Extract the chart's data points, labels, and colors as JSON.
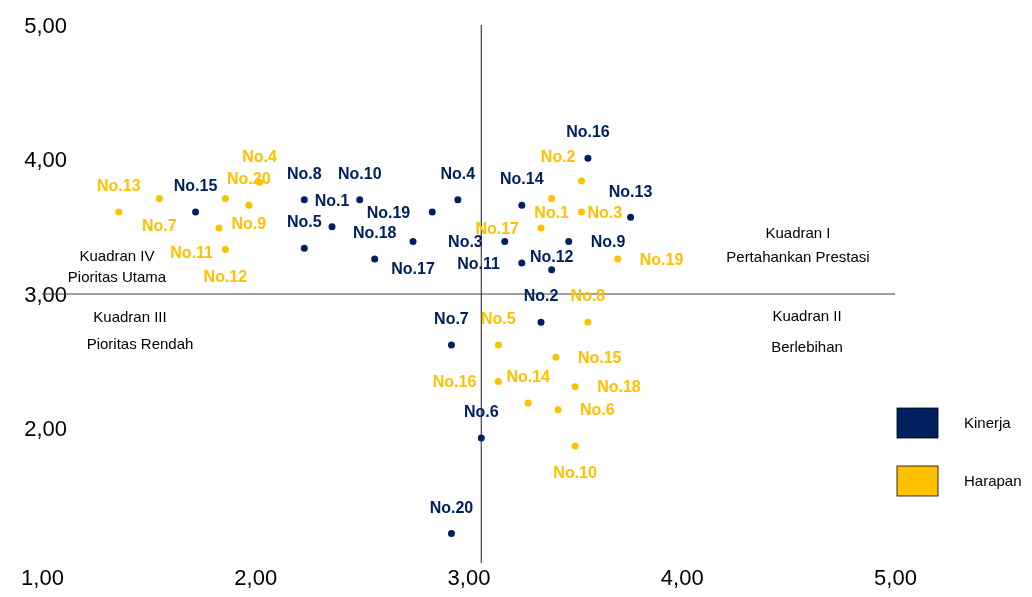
{
  "chart_data": {
    "type": "scatter",
    "marker": "circle",
    "legend": "right",
    "grid": false,
    "xlim": [
      1,
      5
    ],
    "ylim": [
      1,
      5
    ],
    "xticks": [
      {
        "value": 1,
        "label": "1,00"
      },
      {
        "value": 2,
        "label": "2,00"
      },
      {
        "value": 3,
        "label": "3,00"
      },
      {
        "value": 4,
        "label": "4,00"
      },
      {
        "value": 5,
        "label": "5,00"
      }
    ],
    "yticks": [
      {
        "value": 2,
        "label": "2,00"
      },
      {
        "value": 3,
        "label": "3,00"
      },
      {
        "value": 4,
        "label": "4,00"
      },
      {
        "value": 5,
        "label": "5,00"
      }
    ],
    "ref_lines": [
      {
        "axis": "x",
        "value": 3.06,
        "color": "#404040"
      },
      {
        "axis": "y",
        "value": 3,
        "color": "#404040"
      }
    ],
    "annotations": [
      "Kuadran IV",
      "Pioritas Utama",
      "Kuadran III",
      "Pioritas Rendah",
      "Kuadran I",
      "Pertahankan Prestasi",
      "Kuadran II",
      "Berlebihan"
    ],
    "series": [
      {
        "name": "Kinerja",
        "color": "#002060",
        "x": [
          2.36,
          3.34,
          3.17,
          2.95,
          2.23,
          3.06,
          2.92,
          2.23,
          3.47,
          2.49,
          3.25,
          3.39,
          3.76,
          3.25,
          1.72,
          3.56,
          2.74,
          2.56,
          2.83,
          2.92
        ],
        "values": [
          3.5,
          2.79,
          3.39,
          3.7,
          3.34,
          1.93,
          2.62,
          3.7,
          3.39,
          3.7,
          3.23,
          3.18,
          3.57,
          3.66,
          3.61,
          4.01,
          3.39,
          3.26,
          3.61,
          1.22
        ],
        "value_labels": [
          "No.1",
          "No.2",
          "No.3",
          "No.4",
          "No.5",
          "No.6",
          "No.7",
          "No.8",
          "No.9",
          "No.10",
          "No.11",
          "No.12",
          "No.13",
          "No.14",
          "No.15",
          "No.16",
          "No.17",
          "No.18",
          "No.19",
          "No.20"
        ]
      },
      {
        "name": "Harapan",
        "color": "#ffc000",
        "x": [
          3.39,
          3.53,
          3.53,
          2.02,
          3.14,
          3.42,
          1.55,
          3.56,
          1.86,
          3.5,
          1.83,
          1.86,
          1.36,
          3.28,
          3.41,
          3.14,
          3.34,
          3.5,
          3.7,
          1.97
        ],
        "values": [
          3.71,
          3.84,
          3.61,
          3.83,
          2.62,
          2.14,
          3.71,
          2.79,
          3.71,
          1.87,
          3.49,
          3.33,
          3.61,
          2.19,
          2.53,
          2.35,
          3.49,
          2.31,
          3.26,
          3.66
        ],
        "value_labels": [
          "No.1",
          "No.2",
          "No.3",
          "No.4",
          "No.5",
          "No.6",
          "No.7",
          "No.8",
          "No.9",
          "No.10",
          "No.11",
          "No.12",
          "No.13",
          "No.14",
          "No.15",
          "No.16",
          "No.17",
          "No.18",
          "No.19",
          "No.20"
        ]
      }
    ]
  }
}
